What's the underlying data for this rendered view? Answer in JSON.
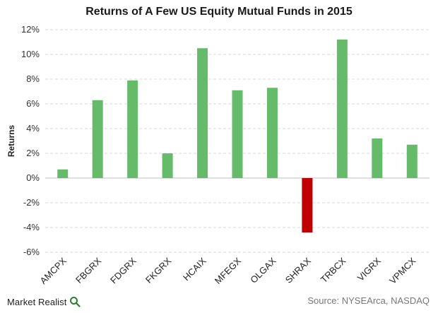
{
  "chart_data": {
    "type": "bar",
    "title": "Returns of A Few US Equity Mutual Funds in 2015",
    "ylabel": "Returns",
    "xlabel": "",
    "categories": [
      "AMCPX",
      "FBGRX",
      "FDGRX",
      "FKGRX",
      "HCAIX",
      "MFEGX",
      "OLGAX",
      "SHRAX",
      "TRBCX",
      "VIGRX",
      "VPMCX"
    ],
    "values": [
      0.7,
      6.3,
      7.9,
      2.0,
      10.5,
      7.1,
      7.3,
      -4.4,
      11.2,
      3.2,
      2.7
    ],
    "ylim": [
      -6,
      12
    ],
    "yticks": [
      -6,
      -4,
      -2,
      0,
      2,
      4,
      6,
      8,
      10,
      12
    ],
    "ytick_labels": [
      "-6%",
      "-4%",
      "-2%",
      "0%",
      "2%",
      "4%",
      "6%",
      "8%",
      "10%",
      "12%"
    ],
    "grid": true,
    "colors": {
      "positive": "#66bb6a",
      "negative": "#c00000",
      "grid": "#d9d9d9",
      "axis": "#bfbfbf"
    }
  },
  "branding": {
    "logo_text": "Market Realist",
    "logo_icon": "magnifier-icon"
  },
  "source": "Source: NYSEArca, NASDAQ"
}
